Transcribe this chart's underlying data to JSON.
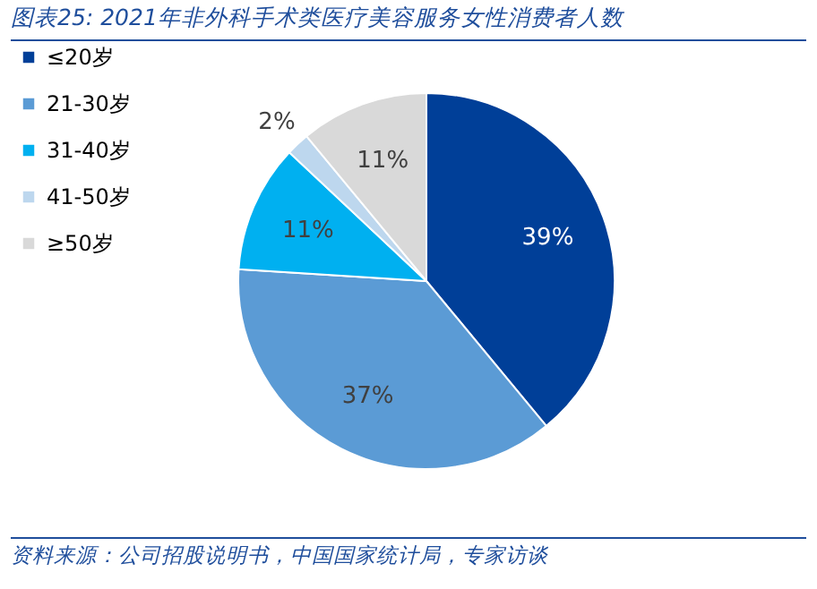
{
  "chart_data": {
    "type": "pie",
    "title": "图表25: 2021年非外科手术类医疗美容服务女性消费者人数",
    "categories": [
      "≤20岁",
      "21-30岁",
      "31-40岁",
      "41-50岁",
      "≥50岁"
    ],
    "values": [
      39,
      37,
      11,
      2,
      11
    ],
    "colors": [
      "#003f98",
      "#5b9bd5",
      "#00b0f0",
      "#bdd7ee",
      "#d9d9d9"
    ],
    "value_labels": [
      "39%",
      "37%",
      "11%",
      "2%",
      "11%"
    ],
    "legend": "left",
    "annotations": [
      "资料来源：公司招股说明书，中国国家统计局，专家访谈"
    ]
  }
}
